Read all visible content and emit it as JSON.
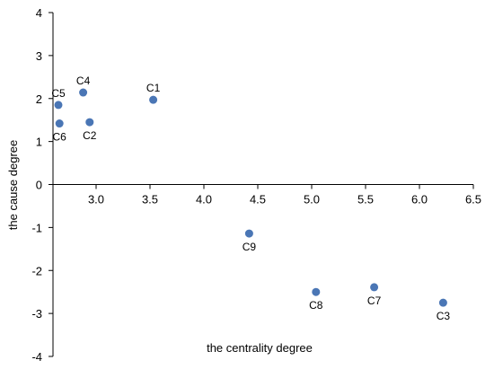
{
  "chart_data": {
    "type": "scatter",
    "title": "",
    "xlabel": "the centrality degree",
    "ylabel": "the cause degree",
    "xlim": [
      2.6,
      6.5
    ],
    "ylim": [
      -4,
      4
    ],
    "x_ticks": [
      "3.0",
      "3.5",
      "4.0",
      "4.5",
      "5.0",
      "5.5",
      "6.0",
      "6.5"
    ],
    "y_ticks": [
      "4",
      "3",
      "2",
      "1",
      "0",
      "-1",
      "-2",
      "-3",
      "-4"
    ],
    "grid": false,
    "legend": "none",
    "point_color": "#4a76b5",
    "points": [
      {
        "label": "C1",
        "x": 3.53,
        "y": 1.97,
        "label_pos": "above"
      },
      {
        "label": "C2",
        "x": 2.94,
        "y": 1.45,
        "label_pos": "below"
      },
      {
        "label": "C3",
        "x": 6.22,
        "y": -2.75,
        "label_pos": "below"
      },
      {
        "label": "C4",
        "x": 2.88,
        "y": 2.14,
        "label_pos": "above"
      },
      {
        "label": "C5",
        "x": 2.65,
        "y": 1.85,
        "label_pos": "above"
      },
      {
        "label": "C6",
        "x": 2.66,
        "y": 1.42,
        "label_pos": "below"
      },
      {
        "label": "C7",
        "x": 5.58,
        "y": -2.39,
        "label_pos": "below"
      },
      {
        "label": "C8",
        "x": 5.04,
        "y": -2.5,
        "label_pos": "below"
      },
      {
        "label": "C9",
        "x": 4.42,
        "y": -1.14,
        "label_pos": "below"
      }
    ]
  }
}
